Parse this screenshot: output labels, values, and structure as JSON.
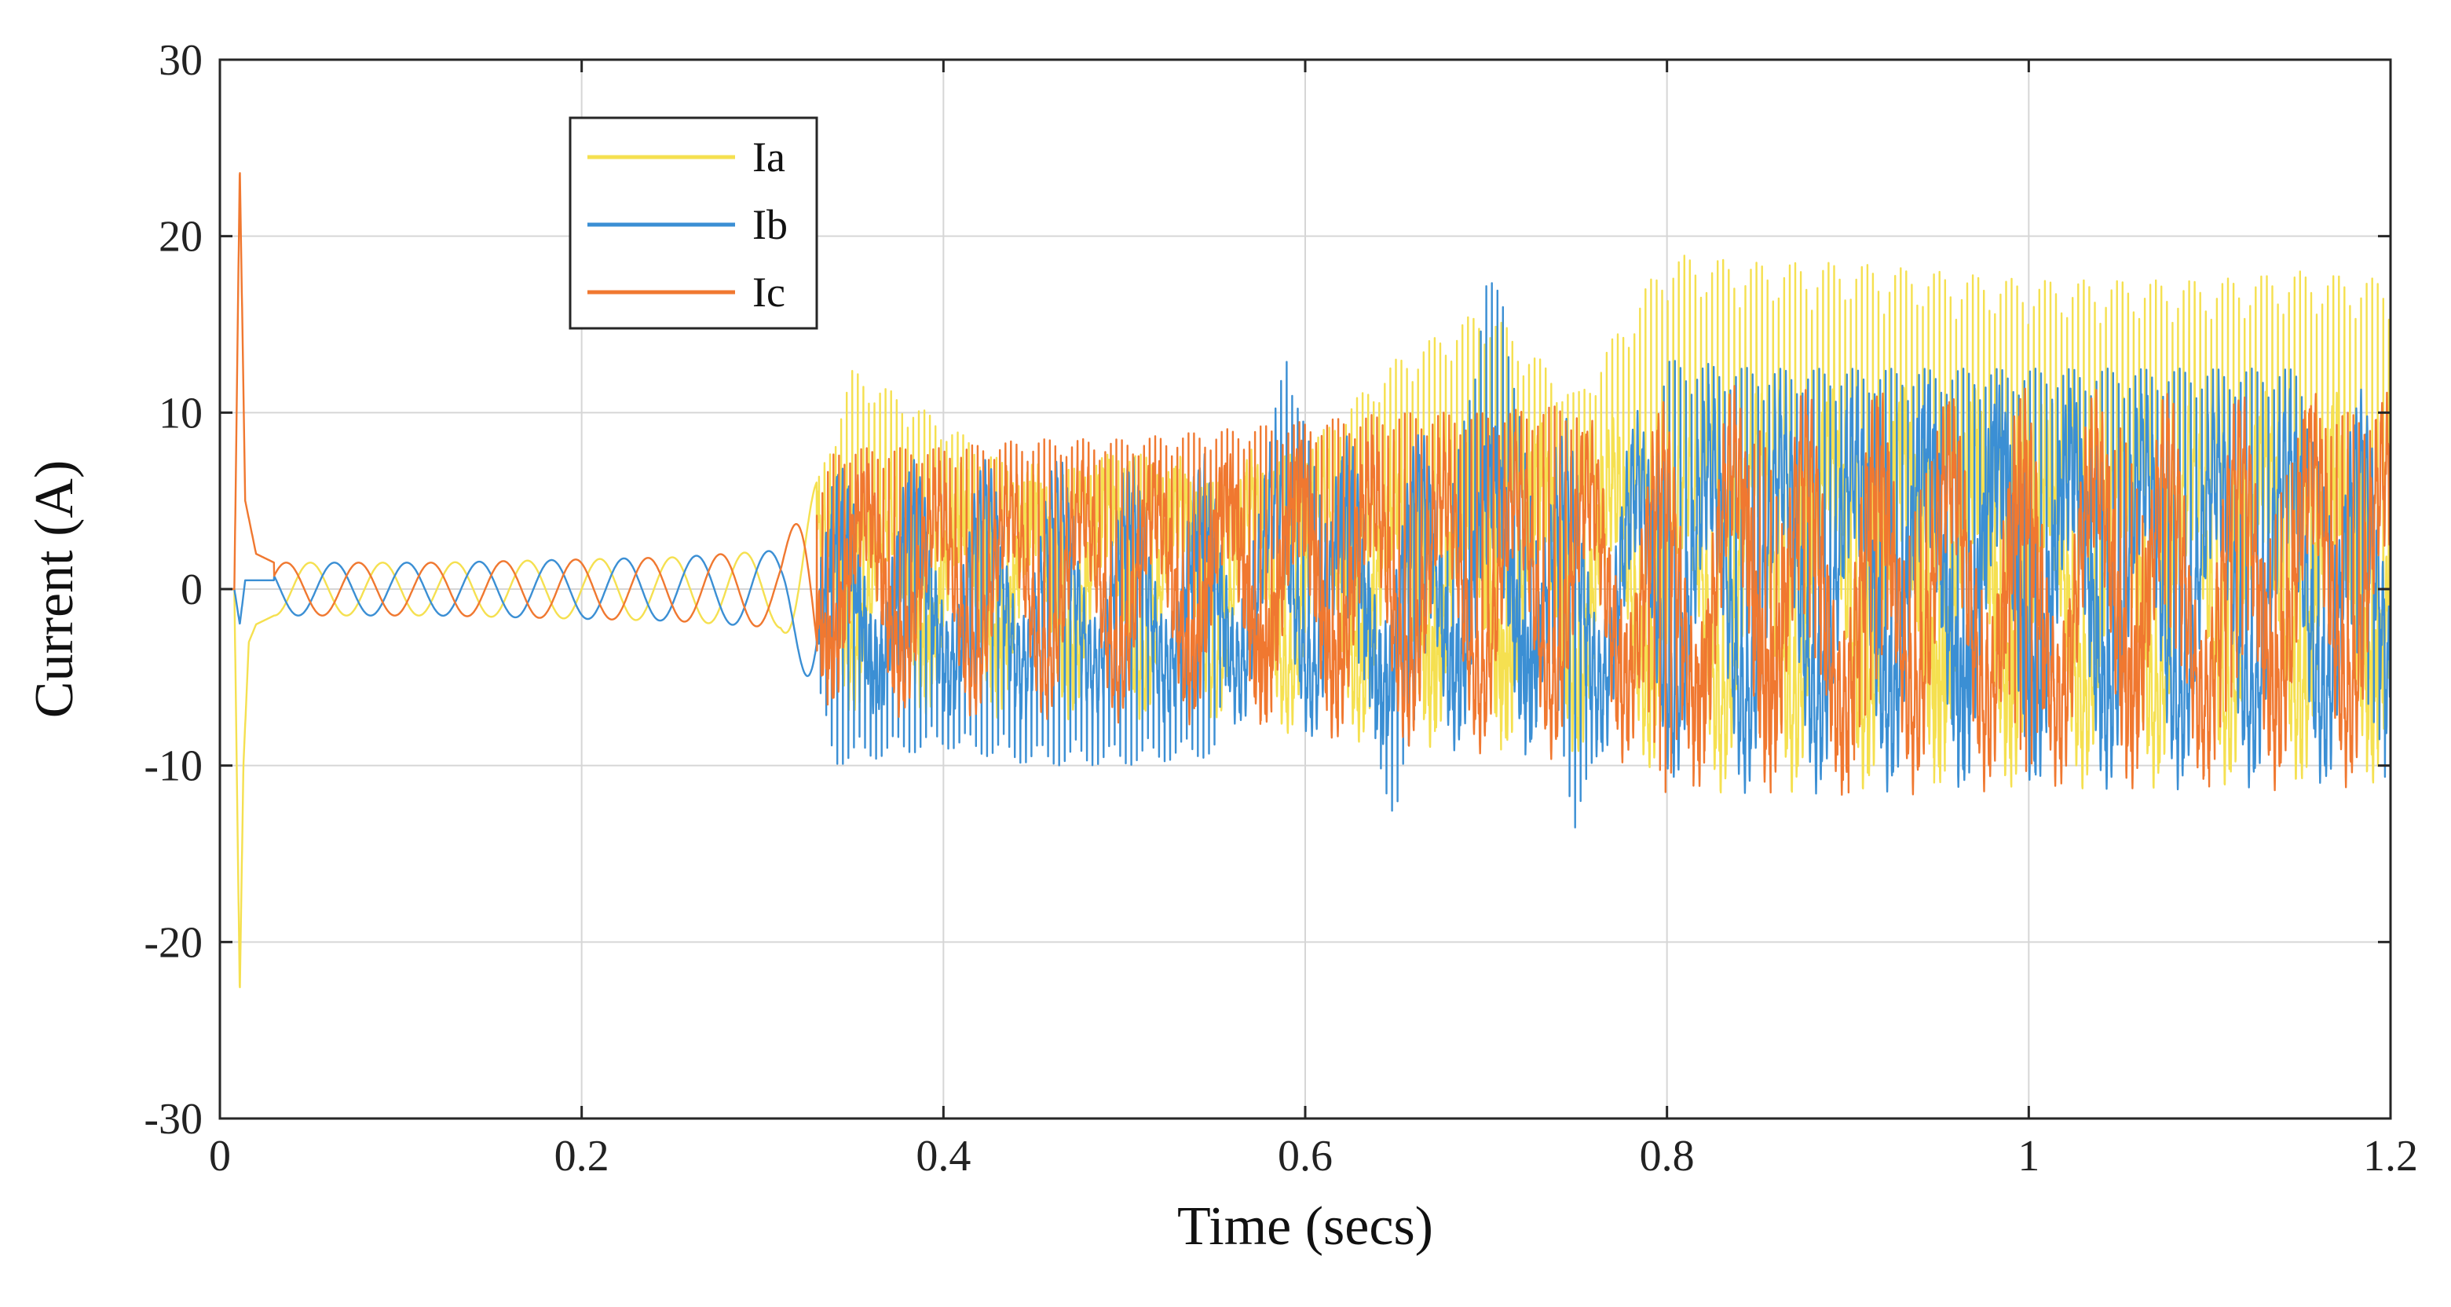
{
  "chart_data": {
    "type": "line",
    "title": "",
    "xlabel": "Time (secs)",
    "ylabel": "Current (A)",
    "xlim": [
      0,
      1.2
    ],
    "ylim": [
      -30,
      30
    ],
    "xticks": [
      0,
      0.2,
      0.4,
      0.6,
      0.8,
      1,
      1.2
    ],
    "xtick_labels": [
      "0",
      "0.2",
      "0.4",
      "0.6",
      "0.8",
      "1",
      "1.2"
    ],
    "yticks": [
      -30,
      -20,
      -10,
      0,
      10,
      20,
      30
    ],
    "ytick_labels": [
      "-30",
      "-20",
      "-10",
      "0",
      "10",
      "20",
      "30"
    ],
    "grid": true,
    "legend": {
      "position": "top-left",
      "entries": [
        "Ia",
        "Ib",
        "Ic"
      ]
    },
    "series": [
      {
        "name": "Ia",
        "color": "#f5e050",
        "x": [
          0,
          0.008,
          0.011,
          0.013,
          0.016,
          0.02,
          0.03,
          0.05,
          0.08,
          0.11,
          0.14,
          0.17,
          0.2,
          0.23,
          0.26,
          0.29,
          0.31,
          0.33,
          0.35,
          0.4,
          0.45,
          0.5,
          0.55,
          0.6,
          0.65,
          0.7,
          0.75,
          0.8,
          0.85,
          0.9,
          0.95,
          1.0,
          1.05,
          1.1,
          1.15,
          1.2
        ],
        "values": [
          0,
          0,
          -23,
          -10,
          -3,
          -2,
          -1.5,
          -1.5,
          -1,
          1.5,
          -1,
          1.5,
          -1,
          1.5,
          -1,
          1.5,
          -2,
          6,
          12.5,
          9.5,
          6,
          8,
          6,
          8,
          13,
          16,
          11,
          19,
          18.5,
          18.5,
          18,
          17.5,
          17.5,
          17.5,
          18,
          17.5
        ]
      },
      {
        "name": "Ib",
        "color": "#3b8fd4",
        "x": [
          0,
          0.008,
          0.011,
          0.014,
          0.02,
          0.03,
          0.05,
          0.08,
          0.11,
          0.14,
          0.17,
          0.2,
          0.23,
          0.26,
          0.29,
          0.31,
          0.34,
          0.4,
          0.45,
          0.5,
          0.55,
          0.59,
          0.65,
          0.7,
          0.71,
          0.75,
          0.8,
          0.85,
          0.9,
          0.95,
          1.0,
          1.05,
          1.1,
          1.15,
          1.2
        ],
        "values": [
          0,
          0,
          -2,
          0.5,
          0.5,
          0.5,
          -0.5,
          -0.5,
          -0.5,
          -1,
          1.5,
          1.5,
          -1.5,
          2,
          -2,
          2.5,
          -10,
          -9,
          -10,
          -10,
          -9.5,
          14,
          -14,
          17.5,
          17,
          -15,
          13,
          12.5,
          12.5,
          12.5,
          12.5,
          12.5,
          12.5,
          12.5,
          -13
        ]
      },
      {
        "name": "Ic",
        "color": "#f07830",
        "x": [
          0,
          0.008,
          0.011,
          0.014,
          0.02,
          0.03,
          0.05,
          0.08,
          0.1,
          0.13,
          0.16,
          0.19,
          0.22,
          0.25,
          0.28,
          0.31,
          0.34,
          0.4,
          0.45,
          0.5,
          0.55,
          0.6,
          0.65,
          0.7,
          0.75,
          0.8,
          0.85,
          0.9,
          0.95,
          1.0,
          1.05,
          1.1,
          1.15,
          1.2
        ],
        "values": [
          0,
          0,
          24,
          5,
          2,
          1.5,
          1.5,
          1.5,
          1,
          -1.5,
          1.5,
          -1.5,
          1.5,
          -2,
          2,
          -2.5,
          8,
          8,
          8.5,
          8.5,
          9,
          9.5,
          10,
          10,
          10.5,
          -12,
          10,
          -12,
          10,
          -11,
          10,
          -11.5,
          10,
          10
        ]
      }
    ]
  }
}
